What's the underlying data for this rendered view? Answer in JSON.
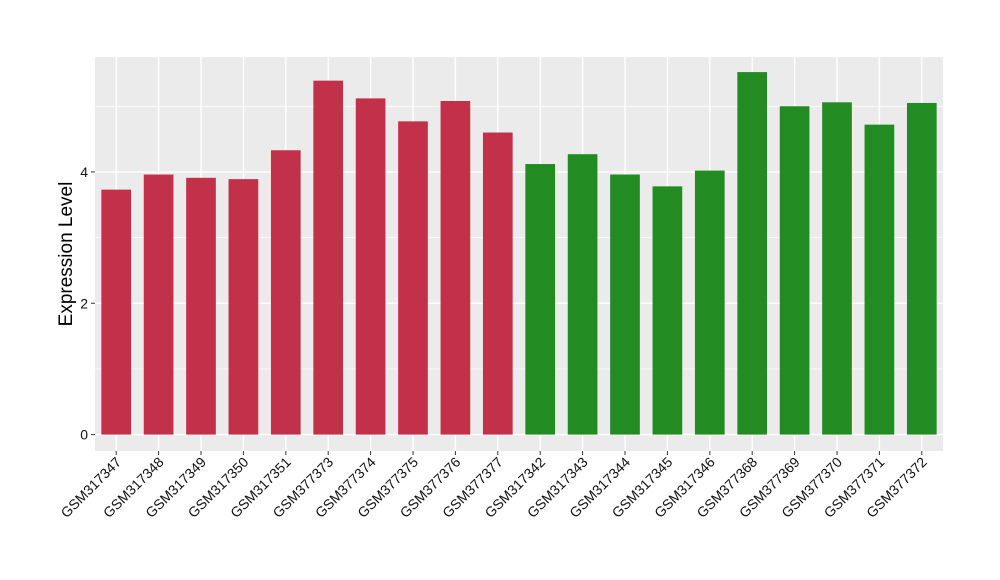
{
  "chart_data": {
    "type": "bar",
    "title": "",
    "xlabel": "",
    "ylabel": "Expression Level",
    "ylim": [
      -0.25,
      5.75
    ],
    "yticks": [
      0,
      2,
      4
    ],
    "grid": true,
    "legend": "none",
    "background_color": "#EBEBEB",
    "grid_color": "#FFFFFF",
    "categories": [
      "GSM317347",
      "GSM317348",
      "GSM317349",
      "GSM317350",
      "GSM317351",
      "GSM377373",
      "GSM377374",
      "GSM377375",
      "GSM377376",
      "GSM377377",
      "GSM317342",
      "GSM317343",
      "GSM317344",
      "GSM317345",
      "GSM317346",
      "GSM377368",
      "GSM377369",
      "GSM377370",
      "GSM377371",
      "GSM377372"
    ],
    "values": [
      3.73,
      3.96,
      3.91,
      3.89,
      4.33,
      5.39,
      5.12,
      4.77,
      5.08,
      4.6,
      4.12,
      4.27,
      3.96,
      3.78,
      4.02,
      5.52,
      5.0,
      5.06,
      4.72,
      5.05
    ],
    "groups": [
      {
        "color": "#C3304A",
        "indices": [
          0,
          1,
          2,
          3,
          4,
          5,
          6,
          7,
          8,
          9
        ]
      },
      {
        "color": "#228B22",
        "indices": [
          10,
          11,
          12,
          13,
          14,
          15,
          16,
          17,
          18,
          19
        ]
      }
    ]
  }
}
